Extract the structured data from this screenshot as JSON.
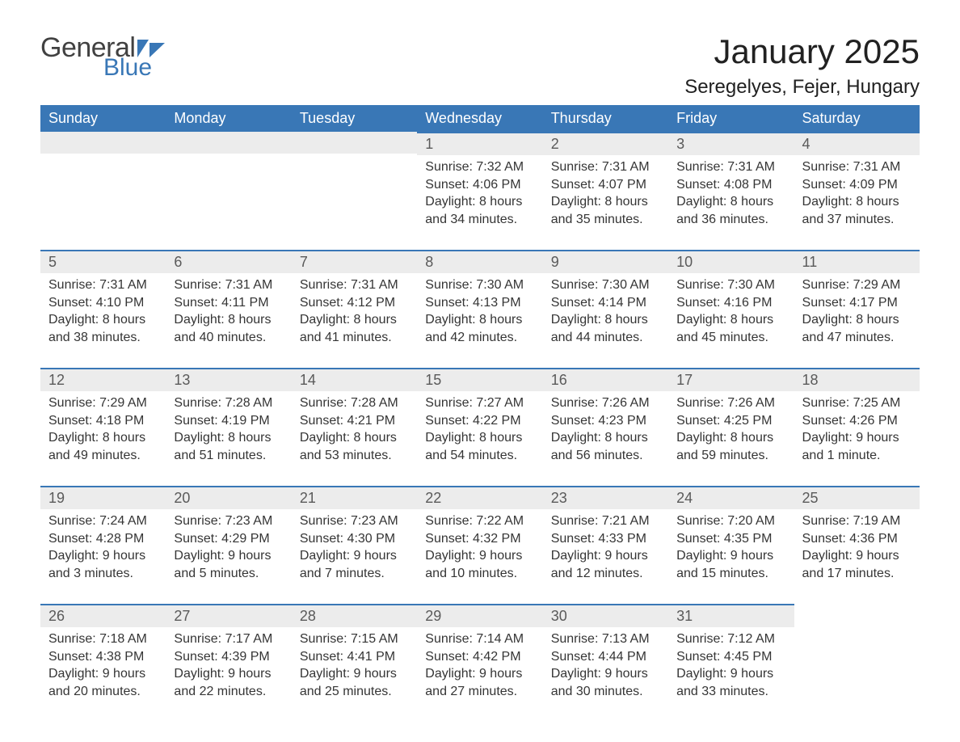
{
  "logo": {
    "general": "General",
    "blue": "Blue",
    "shape_color": "#3977b6"
  },
  "title": "January 2025",
  "location": "Seregelyes, Fejer, Hungary",
  "colors": {
    "header_bg": "#3977b6",
    "header_text": "#ffffff",
    "daynum_bg": "#ececec",
    "daynum_border": "#3977b6",
    "daynum_text": "#5a5a5a",
    "body_text": "#353535",
    "page_bg": "#ffffff",
    "title_text": "#212121",
    "logo_general": "#414141",
    "logo_blue": "#3977b6"
  },
  "typography": {
    "title_fontsize": 42,
    "location_fontsize": 24,
    "header_fontsize": 18,
    "daynum_fontsize": 18,
    "body_fontsize": 16,
    "logo_general_fontsize": 34,
    "logo_blue_fontsize": 30
  },
  "weekdays": [
    "Sunday",
    "Monday",
    "Tuesday",
    "Wednesday",
    "Thursday",
    "Friday",
    "Saturday"
  ],
  "weeks": [
    [
      {
        "empty": true,
        "first_row": true
      },
      {
        "empty": true,
        "first_row": true
      },
      {
        "empty": true,
        "first_row": true
      },
      {
        "num": "1",
        "sunrise": "Sunrise: 7:32 AM",
        "sunset": "Sunset: 4:06 PM",
        "daylight1": "Daylight: 8 hours",
        "daylight2": "and 34 minutes."
      },
      {
        "num": "2",
        "sunrise": "Sunrise: 7:31 AM",
        "sunset": "Sunset: 4:07 PM",
        "daylight1": "Daylight: 8 hours",
        "daylight2": "and 35 minutes."
      },
      {
        "num": "3",
        "sunrise": "Sunrise: 7:31 AM",
        "sunset": "Sunset: 4:08 PM",
        "daylight1": "Daylight: 8 hours",
        "daylight2": "and 36 minutes."
      },
      {
        "num": "4",
        "sunrise": "Sunrise: 7:31 AM",
        "sunset": "Sunset: 4:09 PM",
        "daylight1": "Daylight: 8 hours",
        "daylight2": "and 37 minutes."
      }
    ],
    [
      {
        "num": "5",
        "sunrise": "Sunrise: 7:31 AM",
        "sunset": "Sunset: 4:10 PM",
        "daylight1": "Daylight: 8 hours",
        "daylight2": "and 38 minutes."
      },
      {
        "num": "6",
        "sunrise": "Sunrise: 7:31 AM",
        "sunset": "Sunset: 4:11 PM",
        "daylight1": "Daylight: 8 hours",
        "daylight2": "and 40 minutes."
      },
      {
        "num": "7",
        "sunrise": "Sunrise: 7:31 AM",
        "sunset": "Sunset: 4:12 PM",
        "daylight1": "Daylight: 8 hours",
        "daylight2": "and 41 minutes."
      },
      {
        "num": "8",
        "sunrise": "Sunrise: 7:30 AM",
        "sunset": "Sunset: 4:13 PM",
        "daylight1": "Daylight: 8 hours",
        "daylight2": "and 42 minutes."
      },
      {
        "num": "9",
        "sunrise": "Sunrise: 7:30 AM",
        "sunset": "Sunset: 4:14 PM",
        "daylight1": "Daylight: 8 hours",
        "daylight2": "and 44 minutes."
      },
      {
        "num": "10",
        "sunrise": "Sunrise: 7:30 AM",
        "sunset": "Sunset: 4:16 PM",
        "daylight1": "Daylight: 8 hours",
        "daylight2": "and 45 minutes."
      },
      {
        "num": "11",
        "sunrise": "Sunrise: 7:29 AM",
        "sunset": "Sunset: 4:17 PM",
        "daylight1": "Daylight: 8 hours",
        "daylight2": "and 47 minutes."
      }
    ],
    [
      {
        "num": "12",
        "sunrise": "Sunrise: 7:29 AM",
        "sunset": "Sunset: 4:18 PM",
        "daylight1": "Daylight: 8 hours",
        "daylight2": "and 49 minutes."
      },
      {
        "num": "13",
        "sunrise": "Sunrise: 7:28 AM",
        "sunset": "Sunset: 4:19 PM",
        "daylight1": "Daylight: 8 hours",
        "daylight2": "and 51 minutes."
      },
      {
        "num": "14",
        "sunrise": "Sunrise: 7:28 AM",
        "sunset": "Sunset: 4:21 PM",
        "daylight1": "Daylight: 8 hours",
        "daylight2": "and 53 minutes."
      },
      {
        "num": "15",
        "sunrise": "Sunrise: 7:27 AM",
        "sunset": "Sunset: 4:22 PM",
        "daylight1": "Daylight: 8 hours",
        "daylight2": "and 54 minutes."
      },
      {
        "num": "16",
        "sunrise": "Sunrise: 7:26 AM",
        "sunset": "Sunset: 4:23 PM",
        "daylight1": "Daylight: 8 hours",
        "daylight2": "and 56 minutes."
      },
      {
        "num": "17",
        "sunrise": "Sunrise: 7:26 AM",
        "sunset": "Sunset: 4:25 PM",
        "daylight1": "Daylight: 8 hours",
        "daylight2": "and 59 minutes."
      },
      {
        "num": "18",
        "sunrise": "Sunrise: 7:25 AM",
        "sunset": "Sunset: 4:26 PM",
        "daylight1": "Daylight: 9 hours",
        "daylight2": "and 1 minute."
      }
    ],
    [
      {
        "num": "19",
        "sunrise": "Sunrise: 7:24 AM",
        "sunset": "Sunset: 4:28 PM",
        "daylight1": "Daylight: 9 hours",
        "daylight2": "and 3 minutes."
      },
      {
        "num": "20",
        "sunrise": "Sunrise: 7:23 AM",
        "sunset": "Sunset: 4:29 PM",
        "daylight1": "Daylight: 9 hours",
        "daylight2": "and 5 minutes."
      },
      {
        "num": "21",
        "sunrise": "Sunrise: 7:23 AM",
        "sunset": "Sunset: 4:30 PM",
        "daylight1": "Daylight: 9 hours",
        "daylight2": "and 7 minutes."
      },
      {
        "num": "22",
        "sunrise": "Sunrise: 7:22 AM",
        "sunset": "Sunset: 4:32 PM",
        "daylight1": "Daylight: 9 hours",
        "daylight2": "and 10 minutes."
      },
      {
        "num": "23",
        "sunrise": "Sunrise: 7:21 AM",
        "sunset": "Sunset: 4:33 PM",
        "daylight1": "Daylight: 9 hours",
        "daylight2": "and 12 minutes."
      },
      {
        "num": "24",
        "sunrise": "Sunrise: 7:20 AM",
        "sunset": "Sunset: 4:35 PM",
        "daylight1": "Daylight: 9 hours",
        "daylight2": "and 15 minutes."
      },
      {
        "num": "25",
        "sunrise": "Sunrise: 7:19 AM",
        "sunset": "Sunset: 4:36 PM",
        "daylight1": "Daylight: 9 hours",
        "daylight2": "and 17 minutes."
      }
    ],
    [
      {
        "num": "26",
        "sunrise": "Sunrise: 7:18 AM",
        "sunset": "Sunset: 4:38 PM",
        "daylight1": "Daylight: 9 hours",
        "daylight2": "and 20 minutes."
      },
      {
        "num": "27",
        "sunrise": "Sunrise: 7:17 AM",
        "sunset": "Sunset: 4:39 PM",
        "daylight1": "Daylight: 9 hours",
        "daylight2": "and 22 minutes."
      },
      {
        "num": "28",
        "sunrise": "Sunrise: 7:15 AM",
        "sunset": "Sunset: 4:41 PM",
        "daylight1": "Daylight: 9 hours",
        "daylight2": "and 25 minutes."
      },
      {
        "num": "29",
        "sunrise": "Sunrise: 7:14 AM",
        "sunset": "Sunset: 4:42 PM",
        "daylight1": "Daylight: 9 hours",
        "daylight2": "and 27 minutes."
      },
      {
        "num": "30",
        "sunrise": "Sunrise: 7:13 AM",
        "sunset": "Sunset: 4:44 PM",
        "daylight1": "Daylight: 9 hours",
        "daylight2": "and 30 minutes."
      },
      {
        "num": "31",
        "sunrise": "Sunrise: 7:12 AM",
        "sunset": "Sunset: 4:45 PM",
        "daylight1": "Daylight: 9 hours",
        "daylight2": "and 33 minutes."
      },
      {
        "empty": true,
        "trailing": true
      }
    ]
  ]
}
